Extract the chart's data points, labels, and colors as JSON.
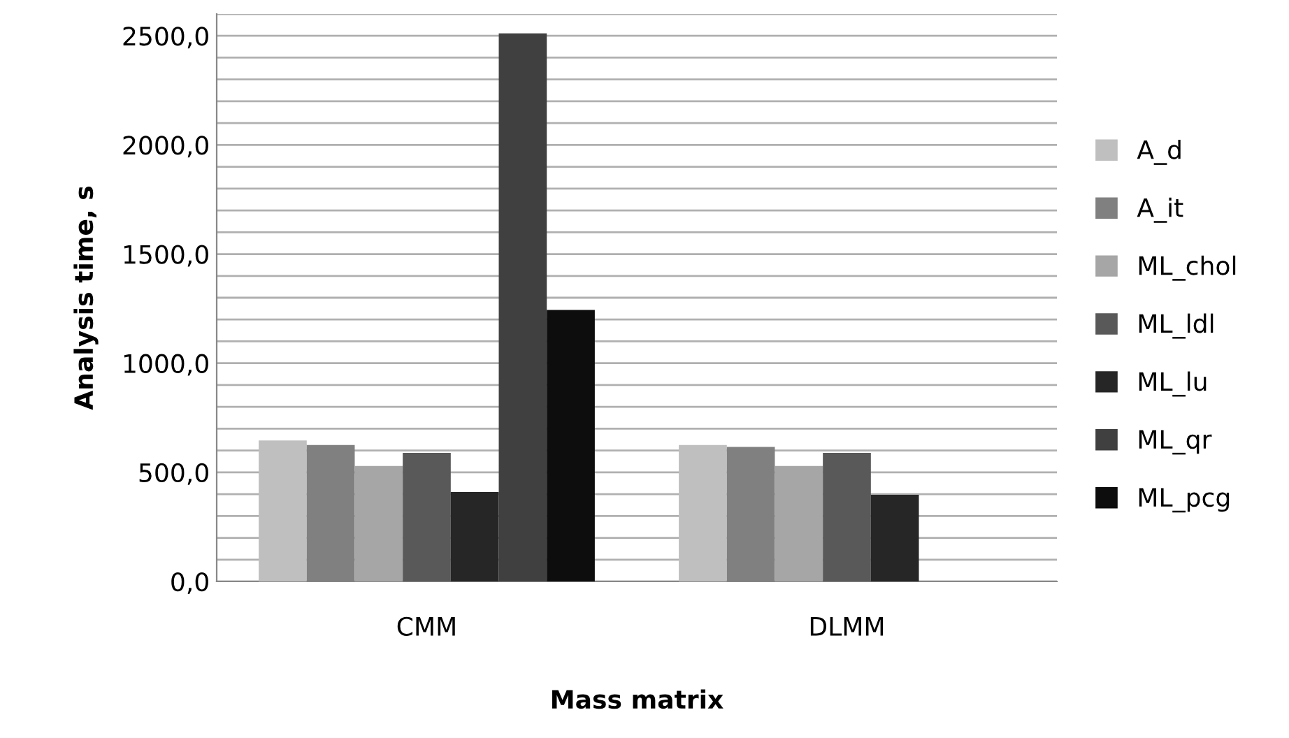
{
  "chart_data": {
    "type": "bar",
    "xlabel": "Mass matrix",
    "ylabel": "Analysis time, s",
    "categories": [
      "CMM",
      "DLMM"
    ],
    "series": [
      {
        "name": "A_d",
        "color": "#bfbfbf",
        "values": [
          646,
          625
        ]
      },
      {
        "name": "A_it",
        "color": "#808080",
        "values": [
          625,
          616
        ]
      },
      {
        "name": "ML_chol",
        "color": "#a6a6a6",
        "values": [
          529,
          529
        ]
      },
      {
        "name": "ML_ldl",
        "color": "#595959",
        "values": [
          589,
          589
        ]
      },
      {
        "name": "ML_lu",
        "color": "#262626",
        "values": [
          410,
          397
        ]
      },
      {
        "name": "ML_qr",
        "color": "#404040",
        "values": [
          2511,
          null
        ]
      },
      {
        "name": "ML_pcg",
        "color": "#0d0d0d",
        "values": [
          1244,
          null
        ]
      }
    ],
    "ylim": [
      0,
      2600
    ],
    "yticks": [
      {
        "value": 0,
        "label": "0,0"
      },
      {
        "value": 100,
        "label": null
      },
      {
        "value": 200,
        "label": null
      },
      {
        "value": 300,
        "label": null
      },
      {
        "value": 400,
        "label": null
      },
      {
        "value": 500,
        "label": "500,0"
      },
      {
        "value": 600,
        "label": null
      },
      {
        "value": 700,
        "label": null
      },
      {
        "value": 800,
        "label": null
      },
      {
        "value": 900,
        "label": null
      },
      {
        "value": 1000,
        "label": "1000,0"
      },
      {
        "value": 1100,
        "label": null
      },
      {
        "value": 1200,
        "label": null
      },
      {
        "value": 1300,
        "label": null
      },
      {
        "value": 1400,
        "label": null
      },
      {
        "value": 1500,
        "label": "1500,0"
      },
      {
        "value": 1600,
        "label": null
      },
      {
        "value": 1700,
        "label": null
      },
      {
        "value": 1800,
        "label": null
      },
      {
        "value": 1900,
        "label": null
      },
      {
        "value": 2000,
        "label": "2000,0"
      },
      {
        "value": 2100,
        "label": null
      },
      {
        "value": 2200,
        "label": null
      },
      {
        "value": 2300,
        "label": null
      },
      {
        "value": 2400,
        "label": null
      },
      {
        "value": 2500,
        "label": "2500,0"
      },
      {
        "value": 2600,
        "label": null
      }
    ],
    "grid": "y",
    "legend": "right"
  }
}
